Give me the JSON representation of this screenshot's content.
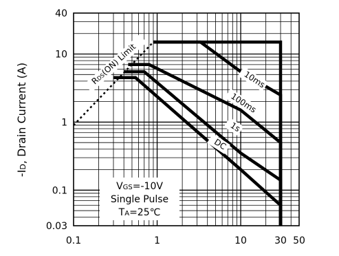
{
  "chart_data": {
    "type": "line",
    "title": "",
    "xlabel": "",
    "ylabel": "-ID, Drain Current (A)",
    "ylabel_parts": [
      "-I",
      "D",
      ", Drain Current (A)"
    ],
    "x_scale": "log",
    "y_scale": "log",
    "xlim": [
      0.1,
      50
    ],
    "ylim": [
      0.03,
      40
    ],
    "x_ticks": [
      {
        "value": 0.1,
        "label": "0.1"
      },
      {
        "value": 1,
        "label": "1"
      },
      {
        "value": 10,
        "label": "10"
      },
      {
        "value": 30,
        "label": "30"
      },
      {
        "value": 50,
        "label": "50"
      }
    ],
    "y_ticks": [
      {
        "value": 0.03,
        "label": "0.03"
      },
      {
        "value": 0.1,
        "label": "0.1"
      },
      {
        "value": 1,
        "label": "1"
      },
      {
        "value": 10,
        "label": "10"
      },
      {
        "value": 40,
        "label": "40"
      }
    ],
    "grid": true,
    "series": [
      {
        "name": "10ms",
        "points": [
          [
            0.9,
            15
          ],
          [
            3.3,
            15
          ],
          [
            10,
            5.5
          ],
          [
            30,
            2.5
          ],
          [
            30,
            0.03
          ]
        ]
      },
      {
        "name": "100ms",
        "points": [
          [
            0.45,
            7
          ],
          [
            0.8,
            7
          ],
          [
            10,
            1.5
          ],
          [
            30,
            0.5
          ],
          [
            30,
            0.03
          ]
        ]
      },
      {
        "name": "1s",
        "points": [
          [
            0.4,
            5.5
          ],
          [
            0.7,
            5.5
          ],
          [
            10,
            0.35
          ],
          [
            30,
            0.14
          ],
          [
            30,
            0.03
          ]
        ]
      },
      {
        "name": "DC",
        "points": [
          [
            0.3,
            4.5
          ],
          [
            0.55,
            4.5
          ],
          [
            10,
            0.2
          ],
          [
            30,
            0.06
          ],
          [
            30,
            0.03
          ]
        ]
      },
      {
        "name": "",
        "points": [
          [
            0.9,
            15
          ],
          [
            30,
            15
          ],
          [
            30,
            0.03
          ]
        ]
      }
    ],
    "limit_line": {
      "label": "RDS(ON) Limit",
      "label_parts": [
        "R",
        "DS",
        "(ON) Limit"
      ],
      "points": [
        [
          0.1,
          0.9
        ],
        [
          0.9,
          15
        ]
      ]
    },
    "annotation": {
      "lines": [
        {
          "parts": [
            "V",
            "GS",
            "=-10V"
          ]
        },
        {
          "parts": [
            "Single Pulse"
          ]
        },
        {
          "parts": [
            "T",
            "A",
            "=25℃"
          ]
        }
      ]
    }
  }
}
